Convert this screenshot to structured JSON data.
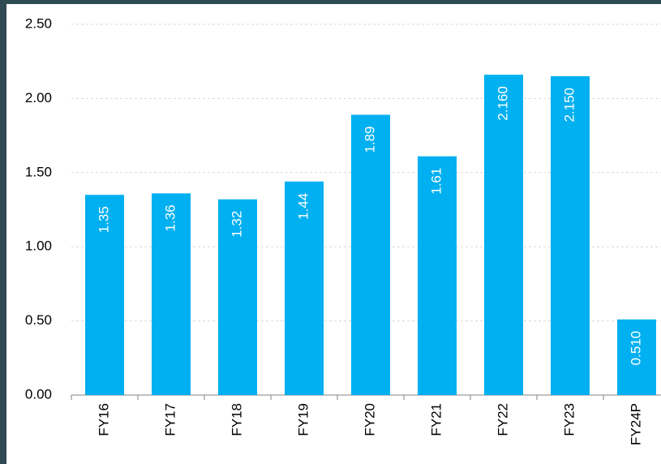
{
  "chart_data": {
    "type": "bar",
    "categories": [
      "FY16",
      "FY17",
      "FY18",
      "FY19",
      "FY20",
      "FY21",
      "FY22",
      "FY23",
      "FY24P"
    ],
    "values": [
      1.35,
      1.36,
      1.32,
      1.44,
      1.89,
      1.61,
      2.16,
      2.15,
      0.51
    ],
    "value_labels": [
      "1.35",
      "1.36",
      "1.32",
      "1.44",
      "1.89",
      "1.61",
      "2.160",
      "2.150",
      "0.510"
    ],
    "color": "#00b0f0",
    "ylim": [
      0,
      2.5
    ],
    "yticks": [
      {
        "value": 0,
        "label": "0.00"
      },
      {
        "value": 0.5,
        "label": "0.50"
      },
      {
        "value": 1,
        "label": "1.00"
      },
      {
        "value": 1.5,
        "label": "1.50"
      },
      {
        "value": 2,
        "label": "2.00"
      },
      {
        "value": 2.5,
        "label": "2.50"
      }
    ],
    "grid": true
  }
}
